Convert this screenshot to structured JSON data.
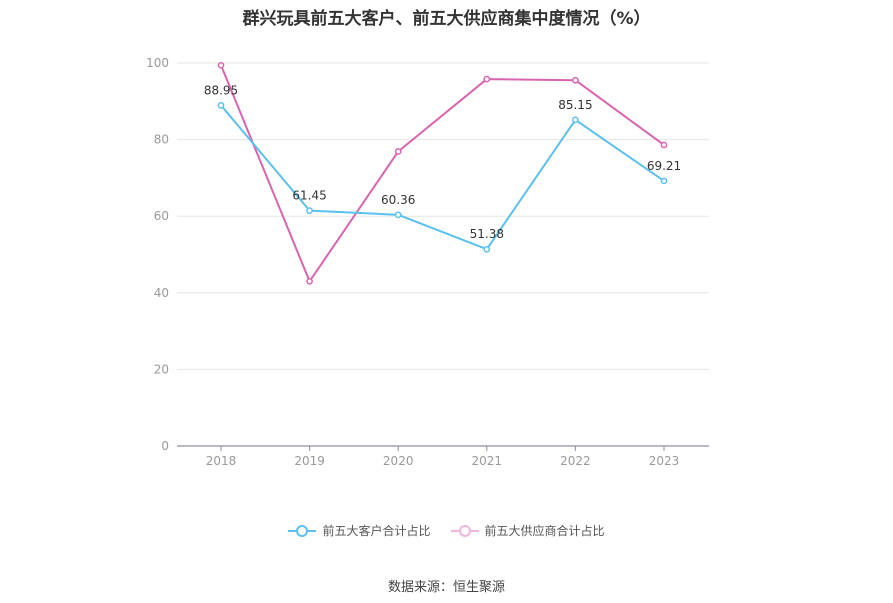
{
  "chart_data": {
    "type": "line",
    "title": "群兴玩具前五大客户、前五大供应商集中度情况（%）",
    "categories": [
      "2018",
      "2019",
      "2020",
      "2021",
      "2022",
      "2023"
    ],
    "ylim": [
      0,
      100
    ],
    "yticks": [
      0,
      20,
      40,
      60,
      80,
      100
    ],
    "grid": true,
    "legend_position": "bottom",
    "series": [
      {
        "name": "前五大客户合计占比",
        "color": "#5bc0ee",
        "values": [
          88.95,
          61.45,
          60.36,
          51.38,
          85.15,
          69.21
        ],
        "labels": [
          "88.95",
          "61.45",
          "60.36",
          "51.38",
          "85.15",
          "69.21"
        ]
      },
      {
        "name": "前五大供应商合计占比",
        "color": "#d864b0",
        "values": [
          99.4,
          43.0,
          76.9,
          95.8,
          95.5,
          78.6
        ]
      }
    ]
  },
  "source": "数据来源：恒生聚源"
}
